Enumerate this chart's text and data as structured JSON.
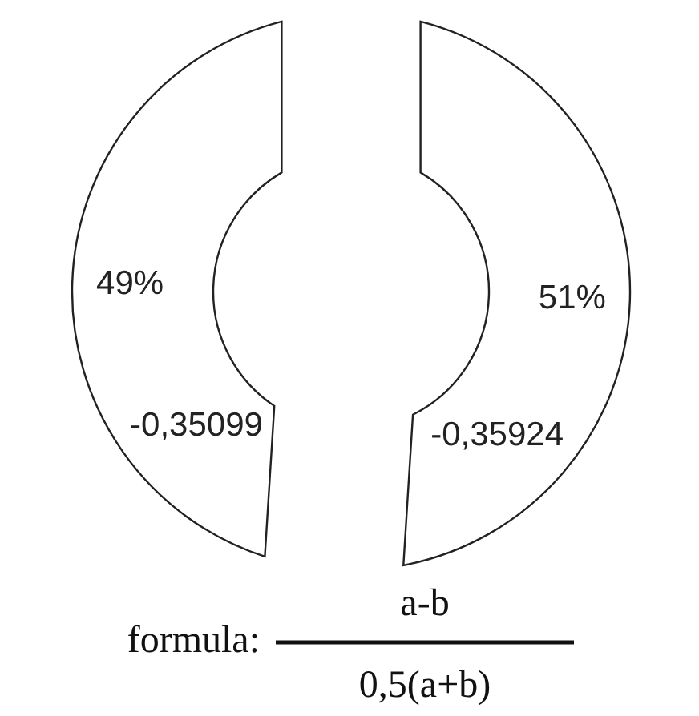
{
  "chart_data": {
    "type": "donut",
    "categories": [
      null,
      null
    ],
    "values": [
      51,
      49
    ],
    "colors": [
      "#ffffff",
      "#ffffff"
    ],
    "value_labels": [
      "51%",
      "49%"
    ],
    "annotations": [
      "-0,35924",
      "-0,35099",
      "formula:",
      "a-b",
      "0,5(a+b)"
    ]
  }
}
